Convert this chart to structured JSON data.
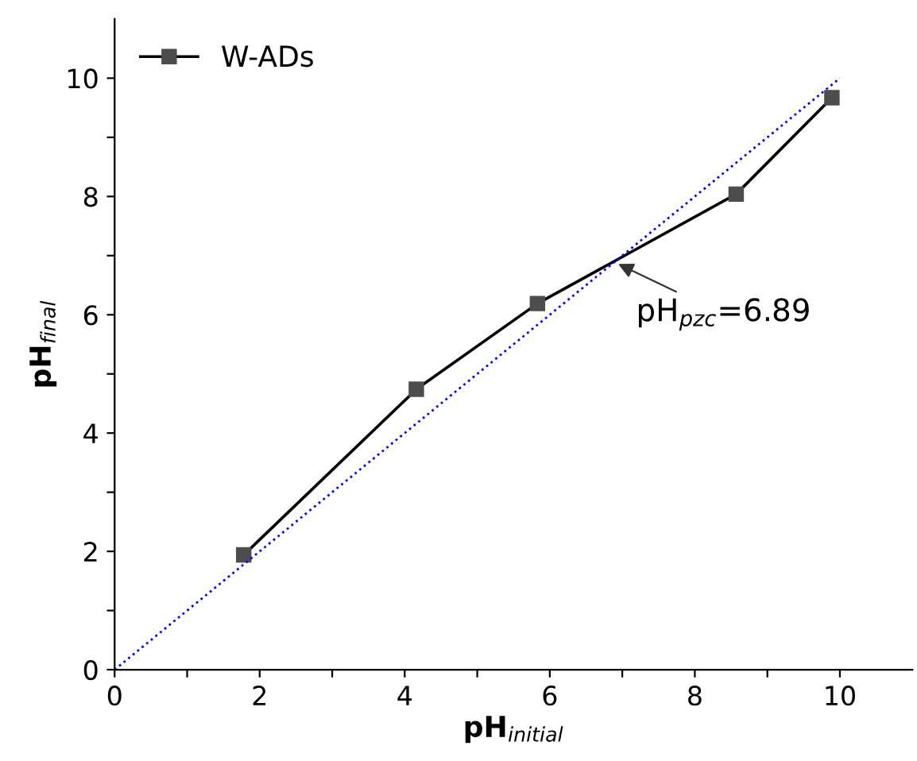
{
  "chart_data": {
    "type": "line",
    "xlabel": "pH$_{initial}$",
    "ylabel": "pH$_{final}$",
    "x": [
      1.78,
      4.16,
      5.83,
      8.57,
      9.89
    ],
    "series": [
      {
        "name": "W-ADs",
        "color": "#000000",
        "values": [
          1.94,
          4.74,
          6.19,
          8.04,
          9.67
        ],
        "marker": "square",
        "line_style": "solid"
      },
      {
        "type": "line",
        "color": "#0000ff",
        "x": [
          0,
          10
        ],
        "values": [
          0,
          10
        ],
        "marker": "none",
        "line_style": "dotted"
      }
    ],
    "xlim": [
      0,
      11
    ],
    "ylim": [
      0,
      11
    ],
    "xticks": [
      0,
      {
        "value": 1,
        "label": null
      },
      2,
      {
        "value": 3,
        "label": null
      },
      4,
      {
        "value": 5,
        "label": null
      },
      6,
      {
        "value": 7,
        "label": null
      },
      8,
      {
        "value": 9,
        "label": null
      },
      10
    ],
    "yticks": [
      0,
      {
        "value": 1,
        "label": null
      },
      2,
      {
        "value": 3,
        "label": null
      },
      4,
      {
        "value": 5,
        "label": null
      },
      6,
      {
        "value": 7,
        "label": null
      },
      8,
      {
        "value": 9,
        "label": null
      },
      10
    ],
    "annotations": [
      {
        "text": "pH$_{pzc}$=6.89",
        "x": 6.89,
        "y": 6.89
      }
    ],
    "legend": "top left",
    "grid": false
  }
}
